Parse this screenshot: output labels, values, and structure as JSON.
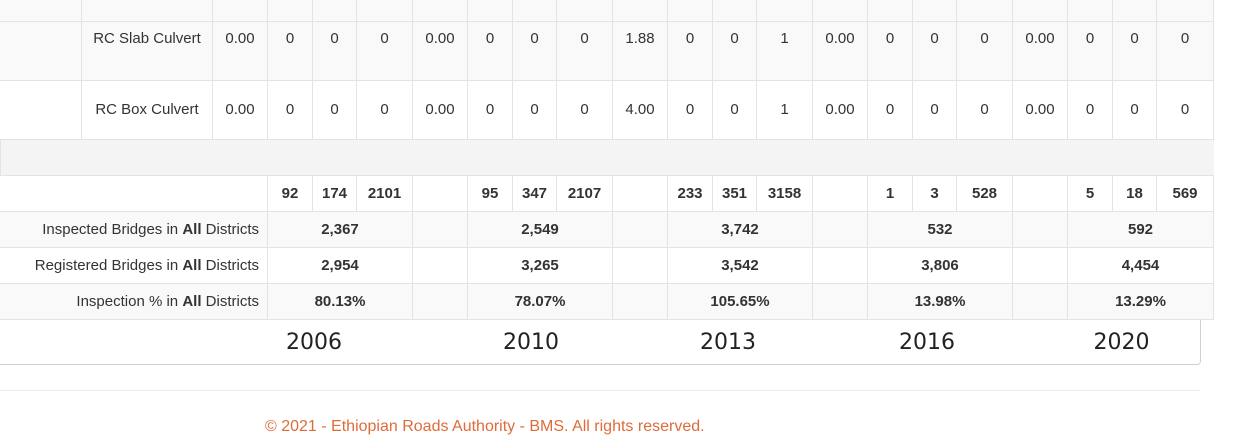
{
  "culvert_rows": [
    {
      "label": "RC Slab Culvert",
      "values": [
        "0.00",
        "0",
        "0",
        "0",
        "0.00",
        "0",
        "0",
        "0",
        "1.88",
        "0",
        "0",
        "1",
        "0.00",
        "0",
        "0",
        "0",
        "0.00",
        "0",
        "0",
        "0"
      ]
    },
    {
      "label": "RC Box Culvert",
      "values": [
        "0.00",
        "0",
        "0",
        "0",
        "0.00",
        "0",
        "0",
        "0",
        "4.00",
        "0",
        "0",
        "1",
        "0.00",
        "0",
        "0",
        "0",
        "0.00",
        "0",
        "0",
        "0"
      ]
    }
  ],
  "totals_row": {
    "groups": [
      [
        "92",
        "174",
        "2101"
      ],
      [
        "95",
        "347",
        "2107"
      ],
      [
        "233",
        "351",
        "3158"
      ],
      [
        "1",
        "3",
        "528"
      ],
      [
        "5",
        "18",
        "569"
      ]
    ]
  },
  "summary_rows": [
    {
      "prefix": "Inspected Bridges in ",
      "bold": "All",
      "suffix": " Districts",
      "values": [
        "2,367",
        "2,549",
        "3,742",
        "532",
        "592"
      ]
    },
    {
      "prefix": "Registered Bridges in ",
      "bold": "All",
      "suffix": " Districts",
      "values": [
        "2,954",
        "3,265",
        "3,542",
        "3,806",
        "4,454"
      ]
    },
    {
      "prefix": "Inspection % in ",
      "bold": "All",
      "suffix": " Districts",
      "values": [
        "80.13%",
        "78.07%",
        "105.65%",
        "13.98%",
        "13.29%"
      ]
    }
  ],
  "years": [
    "2006",
    "2010",
    "2013",
    "2016",
    "2020"
  ],
  "footer": "© 2021 - Ethiopian Roads Authority - BMS. All rights reserved."
}
